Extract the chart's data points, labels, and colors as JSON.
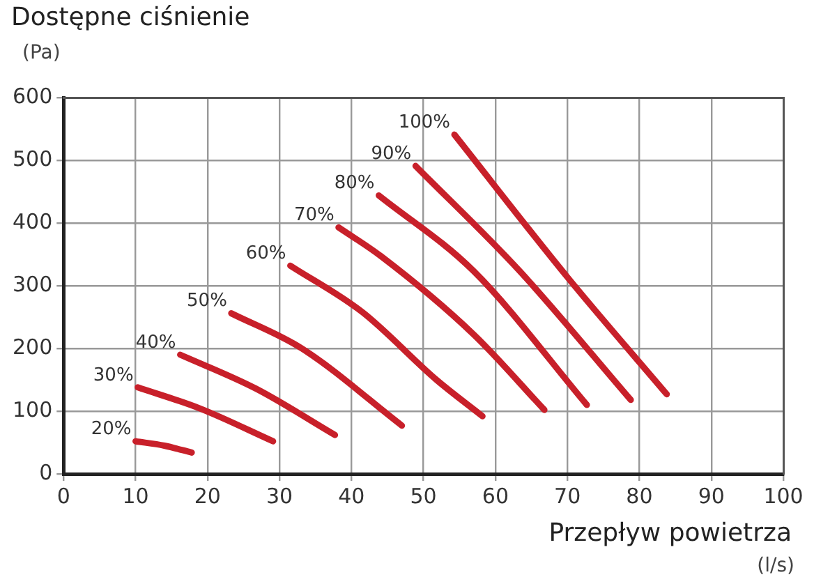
{
  "chart_data": {
    "type": "line",
    "title": "Dostępne ciśnienie",
    "xlabel": "Przepływ powietrza",
    "annotations": [
      "(Pa)",
      "(l/s)"
    ],
    "xlim": [
      0,
      100
    ],
    "xticks": [
      0,
      10,
      20,
      30,
      40,
      50,
      60,
      70,
      80,
      90,
      100
    ],
    "ylim": [
      0,
      600
    ],
    "yticks": [
      0,
      100,
      200,
      300,
      400,
      500,
      600
    ],
    "grid": true,
    "series": [
      {
        "name": "20%",
        "color": "#c8202a",
        "x": [
          10,
          14,
          17.8
        ],
        "values": [
          52,
          45,
          34
        ]
      },
      {
        "name": "30%",
        "color": "#c8202a",
        "x": [
          10.3,
          19,
          29.1
        ],
        "values": [
          138,
          104,
          52
        ]
      },
      {
        "name": "40%",
        "color": "#c8202a",
        "x": [
          16.2,
          26.7,
          37.7
        ],
        "values": [
          190,
          136,
          62
        ]
      },
      {
        "name": "50%",
        "color": "#c8202a",
        "x": [
          23.3,
          33.1,
          47
        ],
        "values": [
          256,
          200,
          77
        ]
      },
      {
        "name": "60%",
        "color": "#c8202a",
        "x": [
          31.5,
          41.5,
          51.8,
          58.2
        ],
        "values": [
          332,
          258,
          150,
          92
        ]
      },
      {
        "name": "70%",
        "color": "#c8202a",
        "x": [
          38.2,
          44.1,
          57,
          66.8
        ],
        "values": [
          393,
          347,
          222,
          102
        ]
      },
      {
        "name": "80%",
        "color": "#c8202a",
        "x": [
          43.8,
          57,
          72.7
        ],
        "values": [
          444,
          323,
          110
        ]
      },
      {
        "name": "90%",
        "color": "#c8202a",
        "x": [
          48.9,
          63.4,
          78.8
        ],
        "values": [
          491,
          323,
          118
        ]
      },
      {
        "name": "100%",
        "color": "#c8202a",
        "x": [
          54.3,
          69.9,
          83.8
        ],
        "values": [
          541,
          315,
          127
        ]
      }
    ]
  }
}
